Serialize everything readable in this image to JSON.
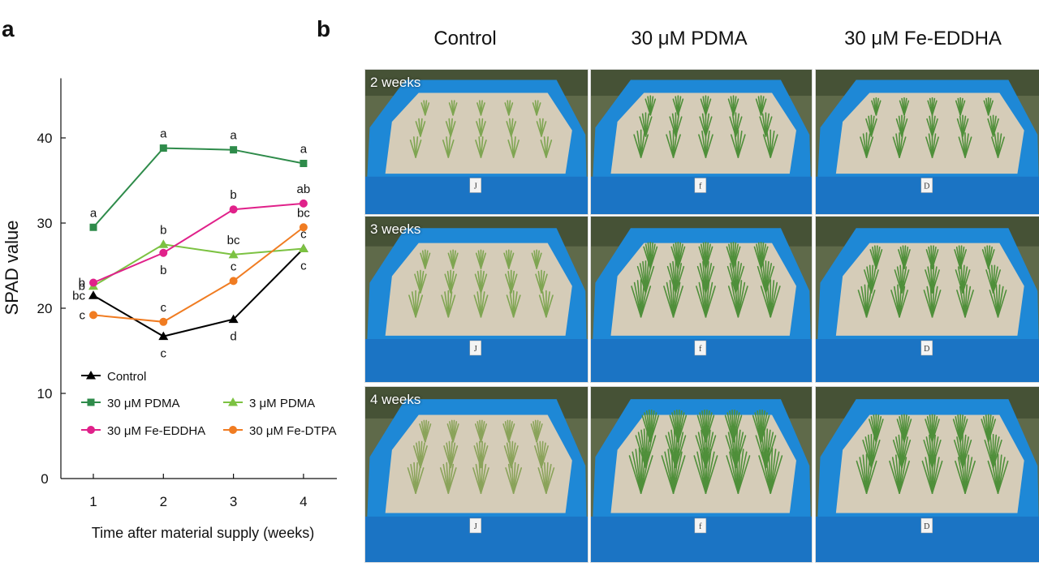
{
  "figure": {
    "panel_a_letter": "a",
    "panel_b_letter": "b"
  },
  "chart_data": {
    "type": "line",
    "title": "",
    "xlabel": "Time after material supply (weeks)",
    "ylabel": "SPAD value",
    "x": [
      1,
      2,
      3,
      4
    ],
    "xticks": [
      "1",
      "2",
      "3",
      "4"
    ],
    "yticks": [
      "0",
      "10",
      "20",
      "30",
      "40"
    ],
    "ylim": [
      0,
      47
    ],
    "grid": false,
    "legend_placement": "bottom-center",
    "series": [
      {
        "name": "Control",
        "color": "#000000",
        "marker": "triangle",
        "values": [
          21.5,
          16.7,
          18.7,
          27.0
        ],
        "letters": [
          "bc",
          "c",
          "d",
          "c"
        ],
        "letter_pos": [
          "left",
          "below",
          "below",
          "below"
        ]
      },
      {
        "name": "30 μM PDMA",
        "color": "#2e8b4a",
        "marker": "square",
        "values": [
          29.5,
          38.8,
          38.6,
          37.0
        ],
        "letters": [
          "a",
          "a",
          "a",
          "a"
        ],
        "letter_pos": [
          "above",
          "above",
          "above",
          "above"
        ]
      },
      {
        "name": "3 μM PDMA",
        "color": "#7cc242",
        "marker": "triangle",
        "values": [
          22.6,
          27.5,
          26.3,
          27.0
        ],
        "letters": [
          "b",
          "b",
          "bc",
          "c"
        ],
        "letter_pos": [
          "left",
          "above",
          "above",
          "above"
        ]
      },
      {
        "name": "30 μM Fe-EDDHA",
        "color": "#e0218a",
        "marker": "circle",
        "values": [
          23.0,
          26.5,
          31.6,
          32.3
        ],
        "letters": [
          "b",
          "b",
          "b",
          "ab"
        ],
        "letter_pos": [
          "left",
          "below",
          "above",
          "above"
        ]
      },
      {
        "name": "30 μM Fe-DTPA",
        "color": "#f07c22",
        "marker": "circle",
        "values": [
          19.2,
          18.4,
          23.2,
          29.5
        ],
        "letters": [
          "c",
          "c",
          "c",
          "bc"
        ],
        "letter_pos": [
          "left",
          "above",
          "above",
          "above"
        ]
      }
    ]
  },
  "photos": {
    "columns": [
      "Control",
      "30 μM PDMA",
      "30 μM Fe-EDDHA"
    ],
    "rows": [
      "2 weeks",
      "3 weeks",
      "4 weeks"
    ],
    "bed_tags": [
      "J",
      "f",
      "D"
    ]
  }
}
